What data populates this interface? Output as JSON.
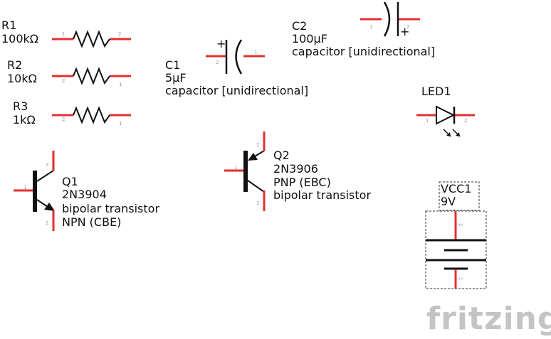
{
  "components": {
    "r1": {
      "name": "R1",
      "value": "100kΩ",
      "pin1": "1",
      "pin2": "2"
    },
    "r2": {
      "name": "R2",
      "value": "10kΩ",
      "pin1": "2",
      "pin2": "1"
    },
    "r3": {
      "name": "R3",
      "value": "1kΩ",
      "pin1": "2",
      "pin2": "1"
    },
    "c1": {
      "name": "C1",
      "value": "5µF",
      "kind": "capacitor [unidirectional]",
      "polarity": "+",
      "pin1": "2",
      "pin2": "1"
    },
    "c2": {
      "name": "C2",
      "value": "100µF",
      "kind": "capacitor [unidirectional]",
      "polarity": "+",
      "pin1": "1",
      "pin2": "2"
    },
    "led1": {
      "name": "LED1",
      "pin1": "1",
      "pin2": "2"
    },
    "q1": {
      "name": "Q1",
      "part": "2N3904",
      "kind": "bipolar transistor",
      "type": "NPN (CBE)",
      "pin_b": "1",
      "pin_c": "3",
      "pin_e": "2"
    },
    "q2": {
      "name": "Q2",
      "part": "2N3906",
      "type": "PNP (EBC)",
      "kind": "bipolar transistor",
      "pin_b": "1",
      "pin_e": "2",
      "pin_c": "3"
    },
    "vcc1": {
      "name": "VCC1",
      "value": "9V",
      "pin_top": "2",
      "pin_bottom": "1"
    }
  },
  "brand": "fritzing",
  "colors": {
    "pin": "#e2302f",
    "symbol": "#111111",
    "brand": "#c4c4c4"
  }
}
